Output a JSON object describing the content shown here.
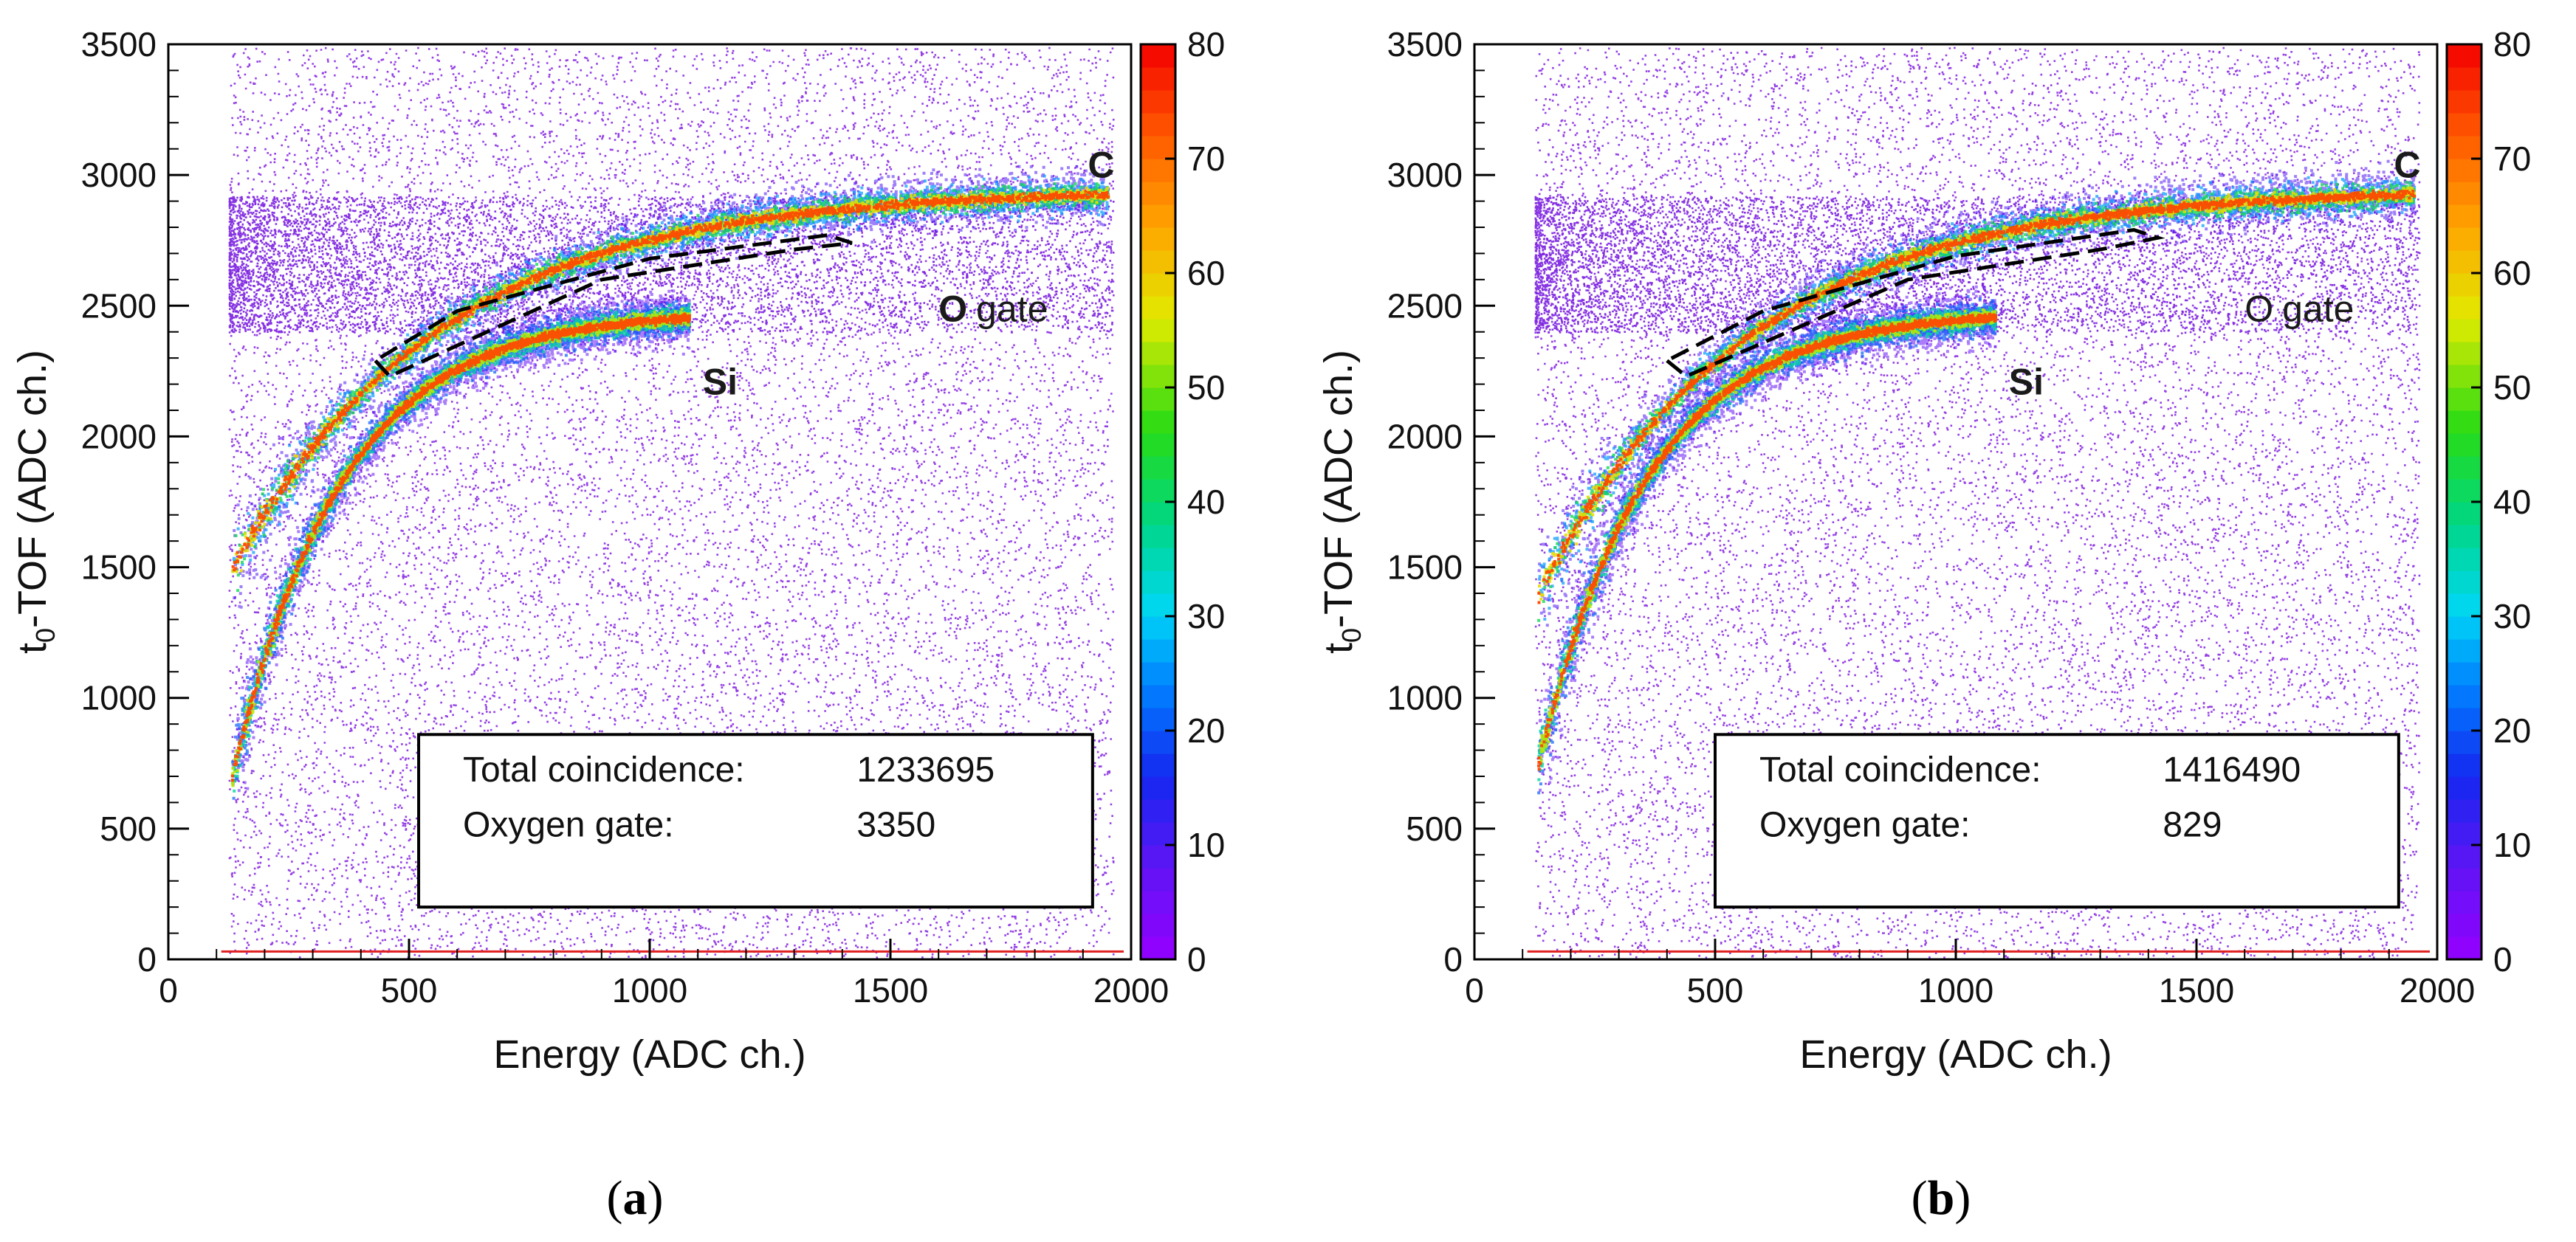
{
  "figure": {
    "panels": [
      "a",
      "b"
    ]
  },
  "chart_data": [
    {
      "type": "heatmap",
      "panel_label": "a",
      "xlabel": "Energy (ADC ch.)",
      "ylabel_main": "t",
      "ylabel_sub": "0",
      "ylabel_rest": "-TOF (ADC ch.)",
      "xlim": [
        0,
        2000
      ],
      "ylim": [
        0,
        3500
      ],
      "xticks": [
        0,
        500,
        1000,
        1500,
        2000
      ],
      "yticks": [
        0,
        500,
        1000,
        1500,
        2000,
        2500,
        3000,
        3500
      ],
      "colorbar": {
        "range": [
          0,
          80
        ],
        "ticks": [
          0,
          10,
          20,
          30,
          40,
          50,
          60,
          70,
          80
        ]
      },
      "annotations": {
        "carbon": "C",
        "oxygen_symbol": "O",
        "oxygen_gate": "gate",
        "silicon": "Si"
      },
      "bands": [
        {
          "name": "C",
          "start_y": 1500,
          "end_x": 1950,
          "end_y": 2930
        },
        {
          "name": "Si",
          "start_y": 700,
          "end_x": 1080,
          "end_y": 2460
        }
      ],
      "oxygen_gate_polygon": [
        [
          430,
          2290
        ],
        [
          460,
          2230
        ],
        [
          900,
          2600
        ],
        [
          1300,
          2715
        ],
        [
          1420,
          2740
        ],
        [
          1370,
          2770
        ],
        [
          1000,
          2680
        ],
        [
          600,
          2480
        ]
      ],
      "stats": {
        "total_label": "Total coincidence:",
        "total_value": "1233695",
        "oxygen_label": "Oxygen gate:",
        "oxygen_value": "3350"
      }
    },
    {
      "type": "heatmap",
      "panel_label": "b",
      "xlabel": "Energy (ADC ch.)",
      "ylabel_main": "t",
      "ylabel_sub": "0",
      "ylabel_rest": "-TOF (ADC ch.)",
      "xlim": [
        0,
        2000
      ],
      "ylim": [
        0,
        3500
      ],
      "xticks": [
        0,
        500,
        1000,
        1500,
        2000
      ],
      "yticks": [
        0,
        500,
        1000,
        1500,
        2000,
        2500,
        3000,
        3500
      ],
      "colorbar": {
        "range": [
          0,
          80
        ],
        "ticks": [
          0,
          10,
          20,
          30,
          40,
          50,
          60,
          70,
          80
        ]
      },
      "annotations": {
        "carbon": "C",
        "oxygen_symbol": "O",
        "oxygen_gate": "gate",
        "silicon": "Si"
      },
      "bands": [
        {
          "name": "C",
          "start_y": 1400,
          "end_x": 1950,
          "end_y": 2930
        },
        {
          "name": "Si",
          "start_y": 750,
          "end_x": 1080,
          "end_y": 2460
        }
      ],
      "oxygen_gate_polygon": [
        [
          400,
          2290
        ],
        [
          440,
          2230
        ],
        [
          900,
          2600
        ],
        [
          1300,
          2715
        ],
        [
          1420,
          2760
        ],
        [
          1370,
          2790
        ],
        [
          1000,
          2690
        ],
        [
          600,
          2480
        ]
      ],
      "stats": {
        "total_label": "Total coincidence:",
        "total_value": "1416490",
        "oxygen_label": "Oxygen gate:",
        "oxygen_value": "829"
      }
    }
  ]
}
